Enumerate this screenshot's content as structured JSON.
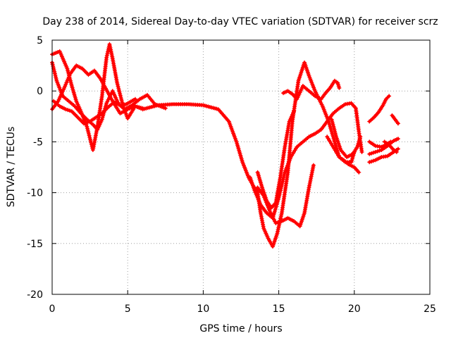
{
  "chart_data": {
    "type": "scatter",
    "title": "Day 238 of 2014, Sidereal Day-to-day VTEC variation (SDTVAR) for receiver scrz",
    "xlabel": "GPS time / hours",
    "ylabel": "SDTVAR / TECUs",
    "xlim": [
      0,
      25
    ],
    "ylim": [
      -20,
      5
    ],
    "xticks": [
      0,
      5,
      10,
      15,
      20,
      25
    ],
    "yticks": [
      5,
      0,
      -5,
      -10,
      -15,
      -20
    ],
    "grid": true,
    "marker": "plus",
    "color": "#ff0000",
    "series": [
      {
        "name": "track-1",
        "points": [
          [
            0.0,
            3.6
          ],
          [
            0.5,
            3.9
          ],
          [
            1.0,
            2.2
          ],
          [
            1.3,
            0.5
          ],
          [
            1.6,
            -1.0
          ],
          [
            1.9,
            -2.0
          ],
          [
            2.3,
            -3.5
          ],
          [
            2.7,
            -5.8
          ],
          [
            3.0,
            -3.5
          ],
          [
            3.3,
            -0.5
          ],
          [
            3.6,
            3.3
          ],
          [
            3.8,
            4.6
          ],
          [
            4.0,
            3.2
          ],
          [
            4.3,
            0.8
          ],
          [
            4.7,
            -1.5
          ],
          [
            5.0,
            -2.7
          ],
          [
            5.5,
            -1.5
          ],
          [
            6.0,
            -1.8
          ],
          [
            7.0,
            -1.4
          ],
          [
            8.0,
            -1.3
          ],
          [
            9.0,
            -1.3
          ],
          [
            10.0,
            -1.4
          ],
          [
            11.0,
            -1.8
          ],
          [
            11.7,
            -3.0
          ],
          [
            12.2,
            -5.0
          ],
          [
            12.6,
            -7.0
          ],
          [
            13.0,
            -8.5
          ],
          [
            13.3,
            -9.3
          ],
          [
            13.6,
            -10.0
          ],
          [
            13.8,
            -12.0
          ],
          [
            14.0,
            -13.5
          ],
          [
            14.3,
            -14.5
          ],
          [
            14.6,
            -15.3
          ],
          [
            14.9,
            -14.0
          ],
          [
            15.2,
            -12.0
          ],
          [
            15.6,
            -8.0
          ],
          [
            15.9,
            -3.0
          ],
          [
            16.3,
            1.0
          ],
          [
            16.7,
            2.8
          ],
          [
            17.0,
            1.5
          ],
          [
            17.4,
            0.0
          ],
          [
            17.9,
            -1.5
          ],
          [
            18.3,
            -3.0
          ],
          [
            18.7,
            -5.0
          ],
          [
            19.0,
            -6.5
          ],
          [
            19.3,
            -6.8
          ],
          [
            19.6,
            -7.2
          ],
          [
            20.0,
            -7.5
          ],
          [
            20.3,
            -8.0
          ]
        ]
      },
      {
        "name": "track-2",
        "points": [
          [
            0.0,
            2.8
          ],
          [
            0.3,
            1.0
          ],
          [
            0.7,
            -0.5
          ],
          [
            1.1,
            -1.0
          ],
          [
            1.5,
            -1.5
          ],
          [
            1.9,
            -2.2
          ],
          [
            2.3,
            -2.8
          ],
          [
            2.7,
            -3.3
          ],
          [
            3.0,
            -3.8
          ],
          [
            3.3,
            -2.8
          ],
          [
            3.6,
            -1.2
          ],
          [
            4.0,
            0.0
          ],
          [
            4.4,
            -1.3
          ],
          [
            4.8,
            -1.8
          ],
          [
            5.3,
            -1.4
          ],
          [
            5.8,
            -0.8
          ],
          [
            6.3,
            -0.4
          ],
          [
            6.8,
            -1.3
          ],
          [
            7.5,
            -1.7
          ]
        ]
      },
      {
        "name": "track-3",
        "points": [
          [
            0.0,
            -1.8
          ],
          [
            0.4,
            -1.0
          ],
          [
            0.8,
            0.3
          ],
          [
            1.2,
            1.7
          ],
          [
            1.6,
            2.5
          ],
          [
            2.0,
            2.2
          ],
          [
            2.4,
            1.6
          ],
          [
            2.8,
            2.0
          ],
          [
            3.2,
            1.2
          ],
          [
            3.6,
            0.1
          ],
          [
            4.0,
            -1.0
          ],
          [
            4.5,
            -2.2
          ],
          [
            5.0,
            -1.8
          ],
          [
            5.5,
            -1.5
          ],
          [
            6.0,
            -1.7
          ]
        ]
      },
      {
        "name": "track-4",
        "points": [
          [
            0.1,
            -1.0
          ],
          [
            0.5,
            -1.5
          ],
          [
            0.9,
            -1.8
          ],
          [
            1.3,
            -2.0
          ],
          [
            1.7,
            -2.6
          ],
          [
            2.1,
            -3.2
          ],
          [
            2.5,
            -3.0
          ],
          [
            2.9,
            -2.6
          ],
          [
            3.3,
            -2.2
          ],
          [
            3.7,
            -1.6
          ],
          [
            4.1,
            -1.1
          ],
          [
            4.5,
            -1.4
          ],
          [
            4.9,
            -1.3
          ],
          [
            5.5,
            -0.8
          ]
        ]
      },
      {
        "name": "track-5",
        "points": [
          [
            13.1,
            -8.5
          ],
          [
            13.4,
            -9.8
          ],
          [
            13.8,
            -11.2
          ],
          [
            14.2,
            -12.0
          ],
          [
            14.6,
            -12.5
          ],
          [
            15.0,
            -10.5
          ],
          [
            15.4,
            -8.0
          ],
          [
            15.8,
            -6.5
          ],
          [
            16.2,
            -5.5
          ],
          [
            16.6,
            -5.0
          ],
          [
            17.0,
            -4.5
          ],
          [
            17.4,
            -4.2
          ],
          [
            17.8,
            -3.8
          ],
          [
            18.2,
            -3.0
          ],
          [
            18.6,
            -2.2
          ],
          [
            19.0,
            -1.7
          ],
          [
            19.4,
            -1.3
          ],
          [
            19.8,
            -1.2
          ],
          [
            20.1,
            -1.7
          ],
          [
            20.3,
            -4.0
          ],
          [
            20.5,
            -6.0
          ]
        ]
      },
      {
        "name": "track-6",
        "points": [
          [
            13.6,
            -9.5
          ],
          [
            14.0,
            -10.3
          ],
          [
            14.4,
            -11.8
          ],
          [
            14.8,
            -13.0
          ],
          [
            15.2,
            -12.8
          ],
          [
            15.6,
            -12.5
          ],
          [
            16.0,
            -12.8
          ],
          [
            16.4,
            -13.3
          ],
          [
            16.7,
            -12.0
          ],
          [
            17.0,
            -9.5
          ],
          [
            17.3,
            -7.3
          ]
        ]
      },
      {
        "name": "track-7",
        "points": [
          [
            13.6,
            -8.0
          ],
          [
            13.9,
            -9.5
          ],
          [
            14.2,
            -10.8
          ],
          [
            14.5,
            -11.5
          ],
          [
            14.8,
            -11.0
          ],
          [
            15.1,
            -8.5
          ],
          [
            15.4,
            -5.5
          ],
          [
            15.7,
            -3.0
          ],
          [
            16.0,
            -2.0
          ]
        ]
      },
      {
        "name": "track-8",
        "points": [
          [
            15.3,
            -0.2
          ],
          [
            15.6,
            0.0
          ],
          [
            15.9,
            -0.3
          ],
          [
            16.2,
            -0.8
          ],
          [
            16.6,
            0.5
          ],
          [
            17.0,
            0.0
          ],
          [
            17.4,
            -0.5
          ],
          [
            17.8,
            -0.8
          ],
          [
            18.1,
            -0.2
          ],
          [
            18.4,
            0.3
          ],
          [
            18.7,
            1.0
          ],
          [
            18.9,
            0.8
          ],
          [
            19.0,
            0.3
          ]
        ]
      },
      {
        "name": "track-9",
        "points": [
          [
            18.2,
            -4.5
          ],
          [
            18.6,
            -5.5
          ],
          [
            19.0,
            -6.5
          ],
          [
            19.4,
            -7.0
          ],
          [
            19.8,
            -7.0
          ],
          [
            20.0,
            -6.0
          ]
        ]
      },
      {
        "name": "track-10",
        "points": [
          [
            18.5,
            -2.8
          ],
          [
            18.8,
            -4.5
          ],
          [
            19.1,
            -5.8
          ],
          [
            19.5,
            -6.5
          ],
          [
            19.9,
            -6.2
          ],
          [
            20.2,
            -5.5
          ],
          [
            20.4,
            -4.5
          ]
        ]
      },
      {
        "name": "track-11",
        "points": [
          [
            21.0,
            -3.0
          ],
          [
            21.3,
            -2.6
          ],
          [
            21.6,
            -2.1
          ],
          [
            21.9,
            -1.4
          ],
          [
            22.1,
            -0.8
          ],
          [
            22.3,
            -0.5
          ]
        ]
      },
      {
        "name": "track-12",
        "points": [
          [
            21.0,
            -5.0
          ],
          [
            21.4,
            -5.4
          ],
          [
            21.8,
            -5.5
          ],
          [
            22.1,
            -5.3
          ],
          [
            22.4,
            -5.0
          ]
        ]
      },
      {
        "name": "track-13",
        "points": [
          [
            21.0,
            -7.0
          ],
          [
            21.4,
            -6.8
          ],
          [
            21.8,
            -6.5
          ],
          [
            22.2,
            -6.4
          ],
          [
            22.6,
            -6.0
          ],
          [
            22.9,
            -5.7
          ]
        ]
      },
      {
        "name": "track-14",
        "points": [
          [
            21.0,
            -6.2
          ],
          [
            21.4,
            -6.0
          ],
          [
            21.8,
            -5.8
          ],
          [
            22.2,
            -5.4
          ],
          [
            22.6,
            -4.9
          ],
          [
            22.9,
            -4.7
          ]
        ]
      },
      {
        "name": "track-15",
        "points": [
          [
            22.0,
            -5.0
          ],
          [
            22.3,
            -5.3
          ],
          [
            22.6,
            -5.8
          ],
          [
            22.8,
            -6.0
          ]
        ]
      },
      {
        "name": "track-16",
        "points": [
          [
            22.5,
            -2.4
          ],
          [
            22.7,
            -2.8
          ],
          [
            22.9,
            -3.2
          ]
        ]
      }
    ]
  }
}
